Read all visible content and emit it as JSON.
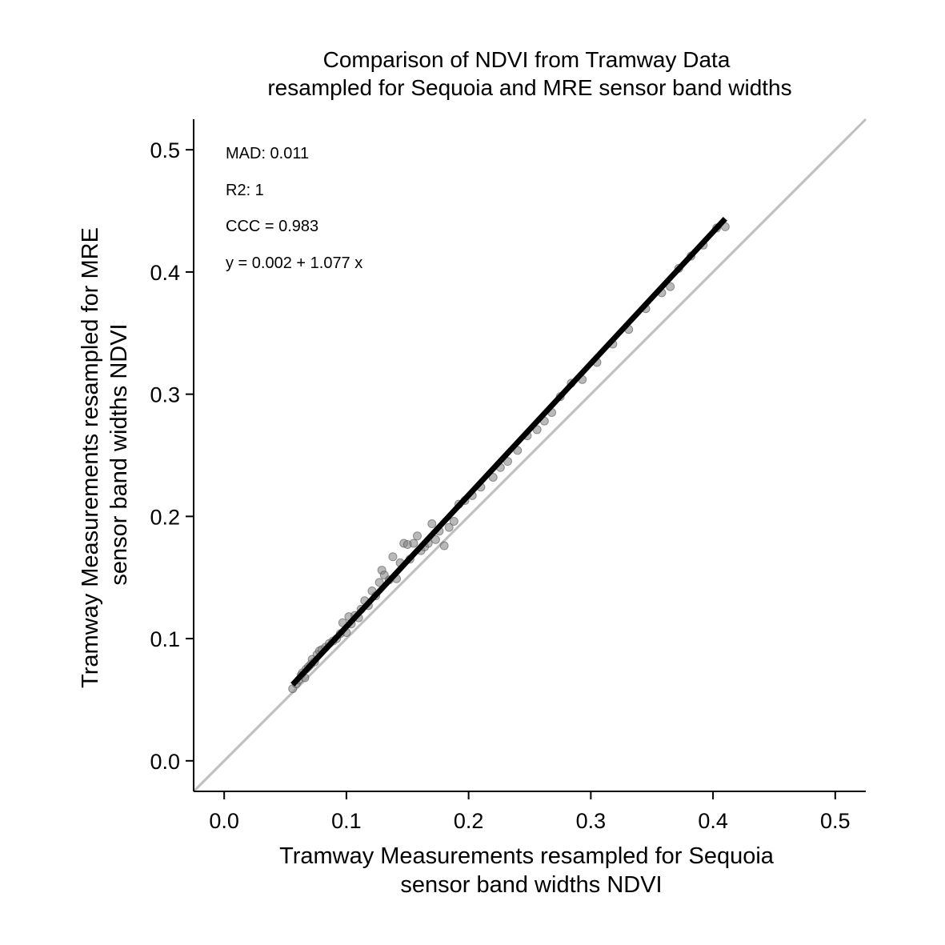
{
  "chart_data": {
    "type": "scatter",
    "title": [
      "Comparison of NDVI from Tramway Data",
      "resampled for Sequoia and MRE sensor band widths"
    ],
    "xlabel": [
      "Tramway Measurements resampled for Sequoia",
      "sensor band widths NDVI"
    ],
    "ylabel": [
      "Tramway Measurements resampled for MRE",
      "sensor band widths NDVI"
    ],
    "xlim": [
      -0.025,
      0.525
    ],
    "ylim": [
      -0.025,
      0.525
    ],
    "x_ticks": [
      0.0,
      0.1,
      0.2,
      0.3,
      0.4,
      0.5
    ],
    "y_ticks": [
      0.0,
      0.1,
      0.2,
      0.3,
      0.4,
      0.5
    ],
    "x_tick_labels": [
      "0.0",
      "0.1",
      "0.2",
      "0.3",
      "0.4",
      "0.5"
    ],
    "y_tick_labels": [
      "0.0",
      "0.1",
      "0.2",
      "0.3",
      "0.4",
      "0.5"
    ],
    "grid": false,
    "annotations": [
      "MAD: 0.011",
      "R2: 1",
      "CCC =  0.983",
      "y =  0.002 + 1.077 x"
    ],
    "fit_line": {
      "intercept": 0.002,
      "slope": 1.077,
      "x_range": [
        0.056,
        0.41
      ],
      "color": "#000000"
    },
    "identity_line": {
      "color": "#bebebe"
    },
    "point_color": "#808080",
    "series": [
      {
        "x": [
          0.056,
          0.059,
          0.061,
          0.063,
          0.064,
          0.066,
          0.067,
          0.069,
          0.071,
          0.072,
          0.074,
          0.076,
          0.078,
          0.08,
          0.083,
          0.086,
          0.089,
          0.092,
          0.095,
          0.097,
          0.1,
          0.102,
          0.104,
          0.107,
          0.11,
          0.112,
          0.115,
          0.118,
          0.121,
          0.124,
          0.127,
          0.129,
          0.131,
          0.135,
          0.138,
          0.141,
          0.144,
          0.147,
          0.15,
          0.152,
          0.155,
          0.158,
          0.161,
          0.164,
          0.167,
          0.17,
          0.173,
          0.176,
          0.18,
          0.184,
          0.188,
          0.192,
          0.197,
          0.203,
          0.21,
          0.22,
          0.226,
          0.232,
          0.24,
          0.248,
          0.256,
          0.262,
          0.268,
          0.275,
          0.284,
          0.293,
          0.305,
          0.318,
          0.331,
          0.345,
          0.358,
          0.365,
          0.372,
          0.382,
          0.392,
          0.403,
          0.41
        ],
        "y": [
          0.059,
          0.063,
          0.066,
          0.07,
          0.072,
          0.068,
          0.075,
          0.077,
          0.079,
          0.083,
          0.081,
          0.087,
          0.09,
          0.091,
          0.093,
          0.096,
          0.098,
          0.1,
          0.104,
          0.113,
          0.105,
          0.118,
          0.112,
          0.119,
          0.117,
          0.124,
          0.131,
          0.127,
          0.139,
          0.135,
          0.146,
          0.156,
          0.152,
          0.148,
          0.167,
          0.149,
          0.162,
          0.178,
          0.177,
          0.165,
          0.178,
          0.184,
          0.172,
          0.175,
          0.178,
          0.194,
          0.181,
          0.188,
          0.176,
          0.191,
          0.196,
          0.21,
          0.213,
          0.217,
          0.224,
          0.232,
          0.24,
          0.245,
          0.254,
          0.266,
          0.271,
          0.278,
          0.285,
          0.298,
          0.309,
          0.312,
          0.326,
          0.341,
          0.353,
          0.37,
          0.383,
          0.388,
          0.403,
          0.413,
          0.422,
          0.436,
          0.437
        ]
      }
    ]
  }
}
